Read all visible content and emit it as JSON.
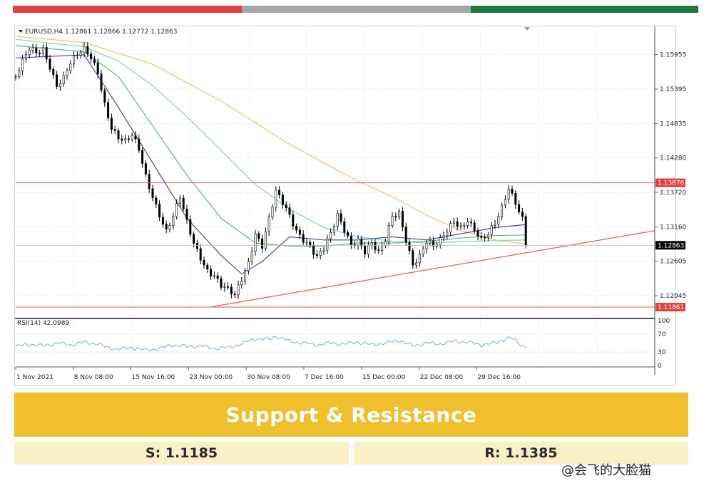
{
  "header_bar": {
    "colors": [
      "#e04040",
      "#a6a6a6",
      "#1e7b3e"
    ]
  },
  "chart_data": {
    "type": "candlestick",
    "symbol_header": "EURUSD,H4  1.12861 1.12866 1.12772 1.12863",
    "x_ticks": [
      "1 Nov 2021",
      "8 Nov 08:00",
      "15 Nov 16:00",
      "23 Nov 00:00",
      "30 Nov 08:00",
      "7 Dec 16:00",
      "15 Dec 00:00",
      "22 Dec 08:00",
      "29 Dec 16:00"
    ],
    "y_ticks": [
      "1.15955",
      "1.15395",
      "1.14835",
      "1.14280",
      "1.13720",
      "1.13160",
      "1.12605",
      "1.12045"
    ],
    "ylim": [
      1.117,
      1.164
    ],
    "close_path": [
      [
        0,
        1.156
      ],
      [
        3,
        1.158
      ],
      [
        6,
        1.16
      ],
      [
        9,
        1.1595
      ],
      [
        12,
        1.1605
      ],
      [
        15,
        1.158
      ],
      [
        18,
        1.155
      ],
      [
        21,
        1.156
      ],
      [
        24,
        1.158
      ],
      [
        27,
        1.159
      ],
      [
        30,
        1.16
      ],
      [
        33,
        1.159
      ],
      [
        36,
        1.157
      ],
      [
        39,
        1.152
      ],
      [
        42,
        1.148
      ],
      [
        45,
        1.146
      ],
      [
        48,
        1.145
      ],
      [
        51,
        1.146
      ],
      [
        54,
        1.144
      ],
      [
        57,
        1.14
      ],
      [
        60,
        1.137
      ],
      [
        63,
        1.134
      ],
      [
        66,
        1.131
      ],
      [
        69,
        1.133
      ],
      [
        72,
        1.136
      ],
      [
        75,
        1.132
      ],
      [
        78,
        1.129
      ],
      [
        81,
        1.127
      ],
      [
        84,
        1.125
      ],
      [
        87,
        1.124
      ],
      [
        90,
        1.122
      ],
      [
        93,
        1.121
      ],
      [
        96,
        1.12
      ],
      [
        99,
        1.123
      ],
      [
        102,
        1.126
      ],
      [
        105,
        1.131
      ],
      [
        108,
        1.129
      ],
      [
        111,
        1.133
      ],
      [
        114,
        1.137
      ],
      [
        117,
        1.135
      ],
      [
        120,
        1.133
      ],
      [
        123,
        1.131
      ],
      [
        126,
        1.13
      ],
      [
        129,
        1.129
      ],
      [
        132,
        1.127
      ],
      [
        135,
        1.128
      ],
      [
        138,
        1.13
      ],
      [
        141,
        1.133
      ],
      [
        144,
        1.131
      ],
      [
        147,
        1.129
      ],
      [
        150,
        1.13
      ],
      [
        153,
        1.128
      ],
      [
        156,
        1.129
      ],
      [
        159,
        1.127
      ],
      [
        162,
        1.129
      ],
      [
        165,
        1.133
      ],
      [
        168,
        1.134
      ],
      [
        171,
        1.13
      ],
      [
        174,
        1.126
      ],
      [
        177,
        1.127
      ],
      [
        180,
        1.129
      ],
      [
        183,
        1.128
      ],
      [
        186,
        1.129
      ],
      [
        189,
        1.131
      ],
      [
        192,
        1.133
      ],
      [
        195,
        1.132
      ],
      [
        198,
        1.133
      ],
      [
        201,
        1.131
      ],
      [
        204,
        1.129
      ],
      [
        207,
        1.13
      ],
      [
        210,
        1.132
      ],
      [
        213,
        1.135
      ],
      [
        216,
        1.1385
      ],
      [
        219,
        1.136
      ],
      [
        222,
        1.133
      ],
      [
        224,
        1.12863
      ]
    ],
    "ema_fast": [
      [
        0,
        1.159
      ],
      [
        30,
        1.1595
      ],
      [
        45,
        1.151
      ],
      [
        60,
        1.142
      ],
      [
        75,
        1.133
      ],
      [
        90,
        1.127
      ],
      [
        99,
        1.124
      ],
      [
        108,
        1.126
      ],
      [
        120,
        1.13
      ],
      [
        135,
        1.1295
      ],
      [
        150,
        1.1295
      ],
      [
        165,
        1.13
      ],
      [
        180,
        1.1295
      ],
      [
        195,
        1.1305
      ],
      [
        210,
        1.1315
      ],
      [
        224,
        1.132
      ]
    ],
    "ema_mid": [
      [
        0,
        1.161
      ],
      [
        30,
        1.16
      ],
      [
        45,
        1.156
      ],
      [
        60,
        1.148
      ],
      [
        75,
        1.14
      ],
      [
        90,
        1.133
      ],
      [
        105,
        1.129
      ],
      [
        120,
        1.1285
      ],
      [
        135,
        1.1285
      ],
      [
        150,
        1.129
      ],
      [
        165,
        1.129
      ],
      [
        180,
        1.1293
      ],
      [
        195,
        1.1298
      ],
      [
        210,
        1.1302
      ],
      [
        224,
        1.1303
      ]
    ],
    "ema_slow": [
      [
        0,
        1.162
      ],
      [
        30,
        1.1608
      ],
      [
        45,
        1.1585
      ],
      [
        60,
        1.1545
      ],
      [
        75,
        1.1495
      ],
      [
        90,
        1.144
      ],
      [
        105,
        1.1385
      ],
      [
        120,
        1.1345
      ],
      [
        135,
        1.1315
      ],
      [
        150,
        1.13
      ],
      [
        165,
        1.1293
      ],
      [
        180,
        1.129
      ],
      [
        195,
        1.1292
      ],
      [
        210,
        1.1294
      ],
      [
        224,
        1.1295
      ]
    ],
    "sma_long": [
      [
        0,
        1.1625
      ],
      [
        30,
        1.1615
      ],
      [
        60,
        1.158
      ],
      [
        90,
        1.152
      ],
      [
        120,
        1.145
      ],
      [
        150,
        1.139
      ],
      [
        165,
        1.1365
      ],
      [
        180,
        1.1335
      ],
      [
        195,
        1.131
      ],
      [
        210,
        1.1295
      ],
      [
        224,
        1.1288
      ]
    ],
    "resistance_line": 1.13876,
    "support_line": 1.11861,
    "trendline": [
      [
        85,
        1.1186
      ],
      [
        280,
        1.131
      ]
    ],
    "current_price": 1.12863,
    "price_labels": [
      "1.13876",
      "1.11861",
      "1.12863"
    ],
    "rsi": {
      "label": "RSI(14) 42.0989",
      "ticks": [
        "100",
        "70",
        "30",
        "0"
      ],
      "values": [
        [
          0,
          42
        ],
        [
          6,
          48
        ],
        [
          12,
          44
        ],
        [
          18,
          50
        ],
        [
          24,
          46
        ],
        [
          30,
          52
        ],
        [
          36,
          48
        ],
        [
          39,
          42
        ],
        [
          45,
          36
        ],
        [
          51,
          40
        ],
        [
          57,
          34
        ],
        [
          63,
          38
        ],
        [
          69,
          46
        ],
        [
          75,
          42
        ],
        [
          81,
          44
        ],
        [
          87,
          38
        ],
        [
          93,
          40
        ],
        [
          99,
          48
        ],
        [
          105,
          60
        ],
        [
          111,
          58
        ],
        [
          114,
          65
        ],
        [
          120,
          54
        ],
        [
          126,
          50
        ],
        [
          132,
          46
        ],
        [
          138,
          50
        ],
        [
          144,
          48
        ],
        [
          150,
          52
        ],
        [
          156,
          46
        ],
        [
          162,
          50
        ],
        [
          168,
          56
        ],
        [
          174,
          44
        ],
        [
          180,
          50
        ],
        [
          186,
          48
        ],
        [
          192,
          54
        ],
        [
          198,
          52
        ],
        [
          204,
          46
        ],
        [
          210,
          50
        ],
        [
          216,
          62
        ],
        [
          219,
          56
        ],
        [
          222,
          44
        ],
        [
          224,
          42
        ]
      ]
    }
  },
  "banner": {
    "title": "Support & Resistance"
  },
  "levels": {
    "support": "S: 1.1185",
    "resistance": "R: 1.1385"
  },
  "watermark": {
    "text": "@会飞的大脸猫"
  }
}
